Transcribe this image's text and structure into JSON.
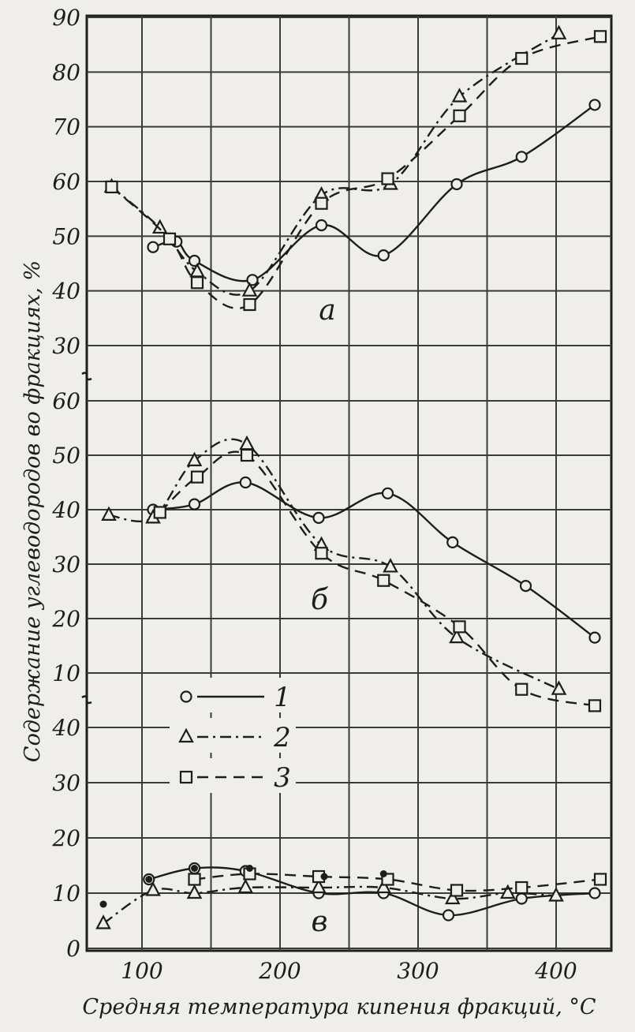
{
  "chart_data": [
    {
      "panel": "a",
      "type": "line",
      "label": "а",
      "ylim": [
        25,
        90
      ],
      "yticks": [
        30,
        40,
        50,
        60,
        70,
        80,
        90
      ],
      "xlim": [
        60,
        440
      ],
      "series": [
        {
          "name": "1",
          "marker": "circle",
          "dash": "solid",
          "points": [
            [
              108,
              48
            ],
            [
              125,
              49
            ],
            [
              138,
              45.5
            ],
            [
              180,
              42
            ],
            [
              230,
              52
            ],
            [
              275,
              46.5
            ],
            [
              328,
              59.5
            ],
            [
              375,
              64.5
            ],
            [
              428,
              74
            ]
          ]
        },
        {
          "name": "2",
          "marker": "triangle",
          "dash": "dashdot",
          "points": [
            [
              78,
              59
            ],
            [
              113,
              51.5
            ],
            [
              140,
              43.5
            ],
            [
              178,
              40
            ],
            [
              230,
              57.5
            ],
            [
              280,
              59.5
            ],
            [
              330,
              75.5
            ],
            [
              402,
              87
            ]
          ]
        },
        {
          "name": "3",
          "marker": "square",
          "dash": "dashed",
          "points": [
            [
              78,
              59
            ],
            [
              120,
              49.5
            ],
            [
              140,
              41.5
            ],
            [
              178,
              37.5
            ],
            [
              230,
              56
            ],
            [
              278,
              60.5
            ],
            [
              330,
              72
            ],
            [
              375,
              82.5
            ],
            [
              432,
              86.5
            ]
          ]
        }
      ]
    },
    {
      "panel": "b",
      "type": "line",
      "label": "б",
      "ylim": [
        5,
        65
      ],
      "yticks": [
        10,
        20,
        30,
        40,
        50,
        60
      ],
      "xlim": [
        60,
        440
      ],
      "series": [
        {
          "name": "1",
          "marker": "circle",
          "dash": "solid",
          "points": [
            [
              108,
              40
            ],
            [
              138,
              41
            ],
            [
              175,
              45
            ],
            [
              228,
              38.5
            ],
            [
              278,
              43
            ],
            [
              325,
              34
            ],
            [
              378,
              26
            ],
            [
              428,
              16.5
            ]
          ]
        },
        {
          "name": "2",
          "marker": "triangle",
          "dash": "dashdot",
          "points": [
            [
              76,
              39
            ],
            [
              108,
              38.5
            ],
            [
              138,
              49
            ],
            [
              176,
              52
            ],
            [
              230,
              33.5
            ],
            [
              280,
              29.5
            ],
            [
              328,
              16.5
            ],
            [
              402,
              7
            ]
          ]
        },
        {
          "name": "3",
          "marker": "square",
          "dash": "dashed",
          "points": [
            [
              113,
              39.5
            ],
            [
              140,
              46
            ],
            [
              176,
              50
            ],
            [
              230,
              32
            ],
            [
              275,
              27
            ],
            [
              330,
              18.5
            ],
            [
              375,
              7
            ],
            [
              428,
              4
            ]
          ]
        }
      ]
    },
    {
      "panel": "c",
      "type": "line",
      "label": "в",
      "ylim": [
        0,
        45
      ],
      "yticks": [
        0,
        10,
        20,
        30,
        40
      ],
      "xlim": [
        60,
        440
      ],
      "series": [
        {
          "name": "1",
          "marker": "circle",
          "dash": "solid",
          "points": [
            [
              105,
              12.5
            ],
            [
              138,
              14.5
            ],
            [
              175,
              14
            ],
            [
              228,
              10
            ],
            [
              275,
              10
            ],
            [
              322,
              6
            ],
            [
              375,
              9
            ],
            [
              428,
              10
            ]
          ]
        },
        {
          "name": "2",
          "marker": "triangle",
          "dash": "dashdot",
          "points": [
            [
              72,
              4.5
            ],
            [
              108,
              10.5
            ],
            [
              138,
              10
            ],
            [
              175,
              11
            ],
            [
              228,
              11
            ],
            [
              275,
              11
            ],
            [
              325,
              9
            ],
            [
              365,
              10
            ],
            [
              400,
              9.5
            ]
          ]
        },
        {
          "name": "3",
          "marker": "square",
          "dash": "dashed",
          "points": [
            [
              138,
              12.5
            ],
            [
              178,
              13.5
            ],
            [
              228,
              13
            ],
            [
              278,
              12.5
            ],
            [
              328,
              10.5
            ],
            [
              375,
              11
            ],
            [
              432,
              12.5
            ]
          ]
        }
      ],
      "extra_dots": [
        [
          72,
          8
        ],
        [
          105,
          12.5
        ],
        [
          138,
          14.5
        ],
        [
          178,
          14.5
        ],
        [
          232,
          13
        ],
        [
          275,
          13.5
        ]
      ]
    }
  ],
  "x_ticks": [
    100,
    200,
    300,
    400
  ],
  "ylabel": "Содержание углеводородов во фракциях, %",
  "xlabel": "Средняя температура кипения фракций, °С",
  "legend": [
    {
      "marker": "circle",
      "dash": "solid",
      "label": "1"
    },
    {
      "marker": "triangle",
      "dash": "dashdot",
      "label": "2"
    },
    {
      "marker": "square",
      "dash": "dashed",
      "label": "3"
    }
  ],
  "colors": {
    "ink": "#1d1d1d",
    "paper": "#efeeea"
  }
}
